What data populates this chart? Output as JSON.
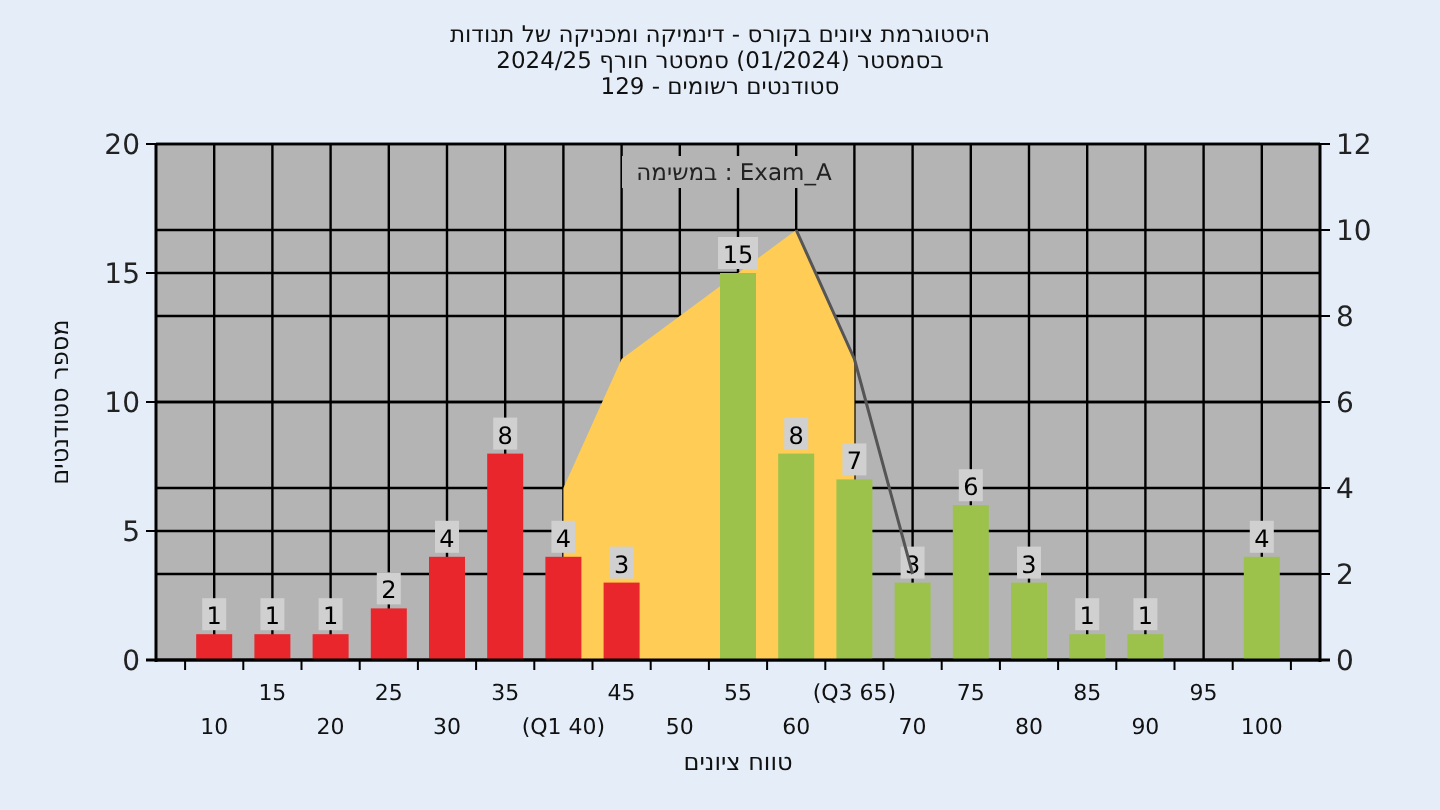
{
  "chart_data": {
    "type": "bar",
    "title": "היסטוגרמת ציונים בקורס - דינמיקה ומכניקה של תנודות",
    "subtitle": "בסמסטר  (01/2024)  סמסטר חורף 2024/25\nסטודנטים רשומים - 129",
    "annotations": [
      "במשימה : Exam_A"
    ],
    "xlabel": "טווח ציונים",
    "ylabel": "מספר סטודנטים",
    "categories": [
      "10",
      "15",
      "20",
      "25",
      "30",
      "35",
      "(Q1 40)",
      "45",
      "50",
      "55",
      "60",
      "(Q3 65)",
      "70",
      "75",
      "80",
      "85",
      "90",
      "95",
      "100"
    ],
    "series": [
      {
        "type": "area",
        "axis": "y2",
        "color": "#ffcc55",
        "values": [
          null,
          null,
          null,
          null,
          null,
          null,
          4,
          7,
          8,
          9,
          10,
          7,
          null,
          null,
          null,
          null,
          null,
          null,
          null
        ]
      },
      {
        "type": "line",
        "axis": "y2",
        "color": "#555555",
        "values": [
          null,
          null,
          null,
          null,
          null,
          null,
          null,
          null,
          null,
          null,
          10,
          7,
          2,
          null,
          null,
          null,
          null,
          null,
          null
        ]
      },
      {
        "value_labels": [
          "1",
          "1",
          "1",
          "2",
          "4",
          "8",
          "4",
          "3",
          null,
          "15",
          "8",
          "7",
          "3",
          "6",
          "3",
          "1",
          "1",
          null,
          "4"
        ],
        "colors": [
          "#e8262c",
          "#e8262c",
          "#e8262c",
          "#e8262c",
          "#e8262c",
          "#e8262c",
          "#e8262c",
          "#e8262c",
          null,
          "#9cc24c",
          "#9cc24c",
          "#9cc24c",
          "#9cc24c",
          "#9cc24c",
          "#9cc24c",
          "#9cc24c",
          "#9cc24c",
          null,
          "#9cc24c"
        ],
        "values": [
          1,
          1,
          1,
          2,
          4,
          8,
          4,
          3,
          null,
          15,
          8,
          7,
          3,
          6,
          3,
          1,
          1,
          null,
          4
        ]
      }
    ],
    "ylim": [
      0,
      20
    ],
    "yticks": [
      0,
      5,
      10,
      15,
      20
    ],
    "y2lim": [
      0,
      12
    ],
    "y2ticks": [
      0,
      2,
      4,
      6,
      8,
      10,
      12
    ],
    "grid": true
  }
}
